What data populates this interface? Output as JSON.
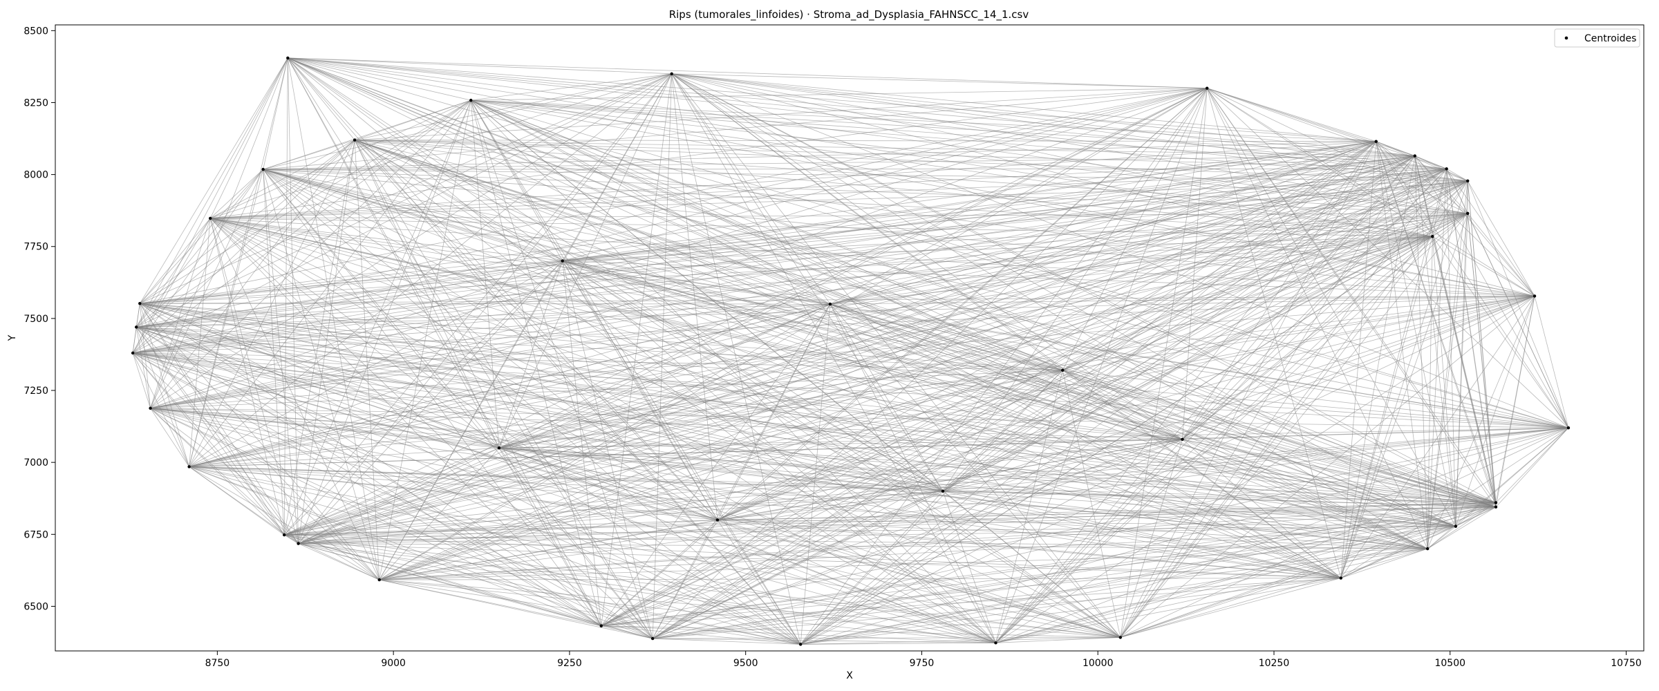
{
  "chart_data": {
    "type": "scatter",
    "title": "Rips (tumorales_linfoides) · Stroma_ad_Dysplasia_FAHNSCC_14_1.csv",
    "xlabel": "X",
    "ylabel": "Y",
    "xlim": [
      8520,
      10775
    ],
    "ylim": [
      6345,
      8520
    ],
    "xticks": [
      8750,
      9000,
      9250,
      9500,
      9750,
      10000,
      10250,
      10500,
      10750
    ],
    "yticks": [
      6500,
      6750,
      7000,
      7250,
      7500,
      7750,
      8000,
      8250,
      8500
    ],
    "grid": false,
    "legend": {
      "placement": "upper right",
      "entries": [
        "Centroides"
      ]
    },
    "colors": {
      "edges": "#808080",
      "points": "#000000",
      "axes": "#000000",
      "background": "#ffffff"
    },
    "series": [
      {
        "name": "Centroides",
        "points": [
          [
            8850,
            8405
          ],
          [
            9395,
            8350
          ],
          [
            9110,
            8258
          ],
          [
            10155,
            8300
          ],
          [
            8945,
            8120
          ],
          [
            10395,
            8115
          ],
          [
            10450,
            8065
          ],
          [
            10495,
            8020
          ],
          [
            8815,
            8018
          ],
          [
            10525,
            7978
          ],
          [
            10525,
            7865
          ],
          [
            8740,
            7848
          ],
          [
            10475,
            7785
          ],
          [
            10620,
            7578
          ],
          [
            8640,
            7552
          ],
          [
            8635,
            7470
          ],
          [
            8630,
            7380
          ],
          [
            8655,
            7188
          ],
          [
            10668,
            7120
          ],
          [
            8710,
            6985
          ],
          [
            10565,
            6860
          ],
          [
            10565,
            6845
          ],
          [
            8845,
            6748
          ],
          [
            8865,
            6718
          ],
          [
            10508,
            6778
          ],
          [
            10468,
            6700
          ],
          [
            10345,
            6598
          ],
          [
            8980,
            6592
          ],
          [
            9295,
            6432
          ],
          [
            9368,
            6388
          ],
          [
            9578,
            6368
          ],
          [
            9855,
            6373
          ],
          [
            10032,
            6392
          ],
          [
            9240,
            7700
          ],
          [
            9620,
            7550
          ],
          [
            9950,
            7320
          ],
          [
            10120,
            7080
          ],
          [
            9780,
            6900
          ],
          [
            9460,
            6800
          ],
          [
            9150,
            7050
          ]
        ]
      }
    ]
  }
}
